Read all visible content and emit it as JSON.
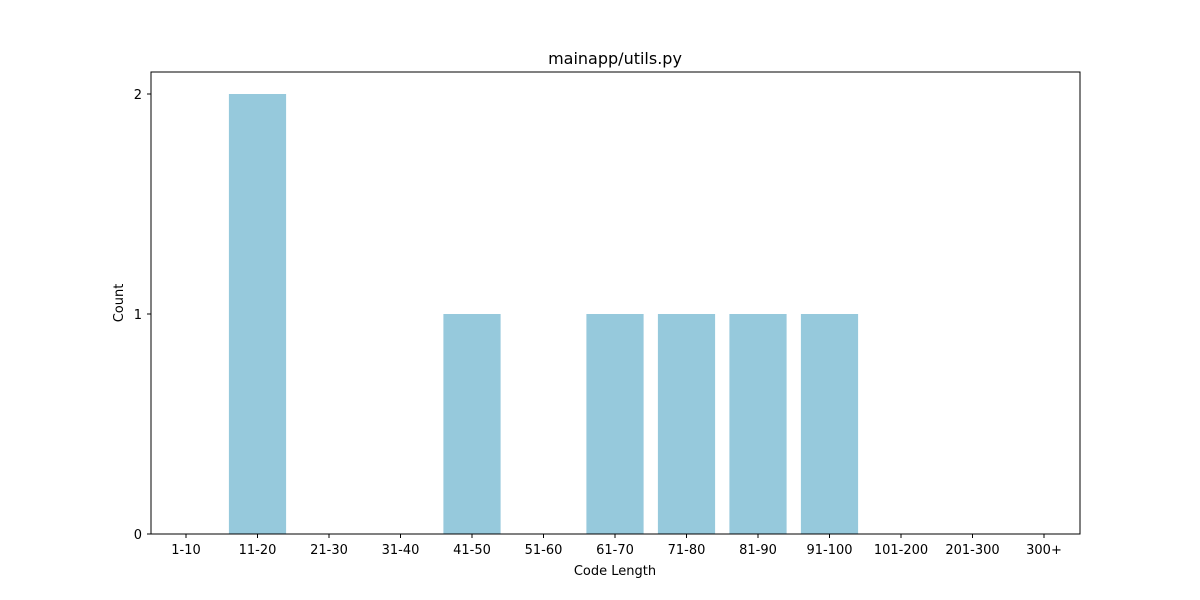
{
  "chart_data": {
    "type": "bar",
    "title": "mainapp/utils.py",
    "xlabel": "Code Length",
    "ylabel": "Count",
    "categories": [
      "1-10",
      "11-20",
      "21-30",
      "31-40",
      "41-50",
      "51-60",
      "61-70",
      "71-80",
      "81-90",
      "91-100",
      "101-200",
      "201-300",
      "300+"
    ],
    "values": [
      0,
      2,
      0,
      0,
      1,
      0,
      1,
      1,
      1,
      1,
      0,
      0,
      0
    ],
    "yticks": [
      0,
      1,
      2
    ],
    "ylim": [
      0,
      2.1
    ],
    "grid": false,
    "bar_color": "#96c9dc"
  }
}
